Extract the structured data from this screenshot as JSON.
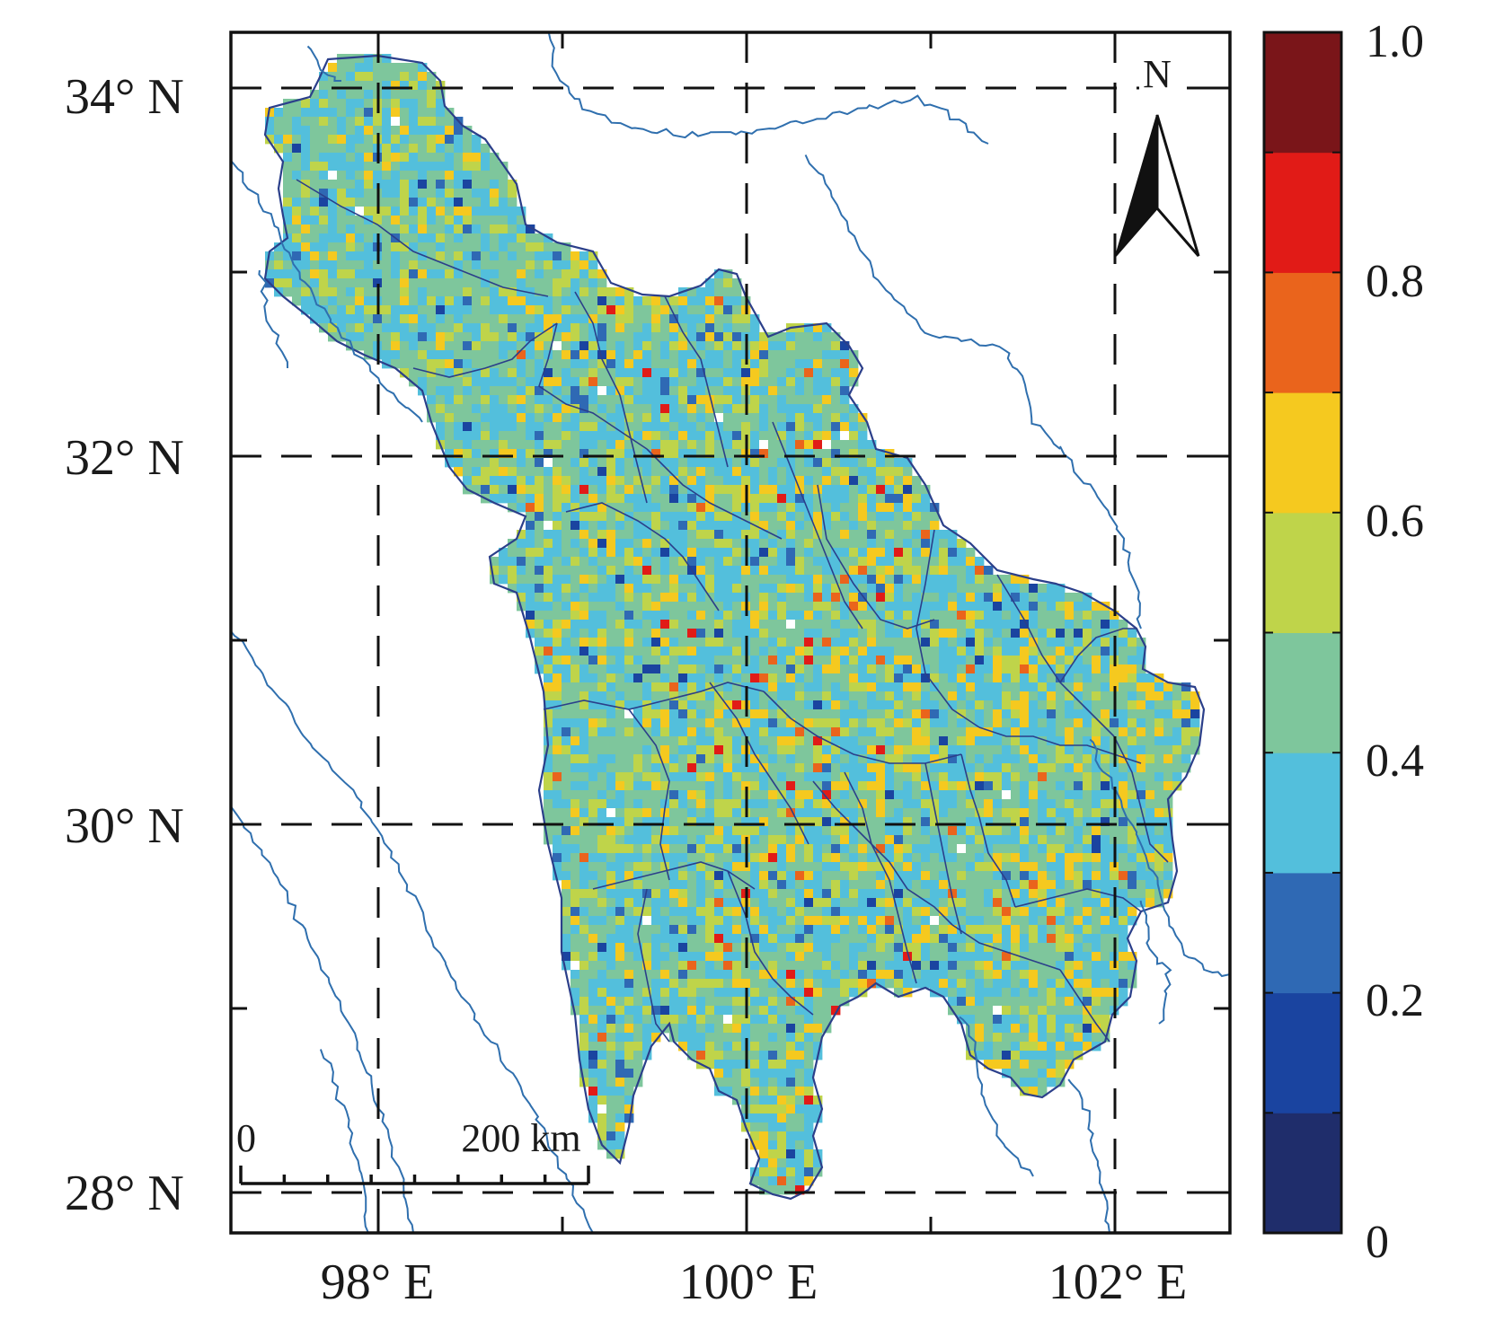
{
  "map": {
    "lat_labels": [
      "34° N",
      "32° N",
      "30° N",
      "28° N"
    ],
    "lon_labels": [
      "98° E",
      "100° E",
      "102° E"
    ],
    "lat_values": [
      34,
      32,
      30,
      28
    ],
    "lon_values": [
      98,
      100,
      102
    ],
    "extent": {
      "lon_min": 97.2,
      "lon_max": 102.6,
      "lat_min": 27.8,
      "lat_max": 34.3
    },
    "grid": "dashed",
    "north_arrow_label": "N",
    "scale_bar": {
      "start_label": "0",
      "end_label": "200 km"
    }
  },
  "colorbar": {
    "range": [
      0,
      1.0
    ],
    "tick_labels": [
      "0",
      "0.2",
      "0.4",
      "0.6",
      "0.8",
      "1.0"
    ],
    "tick_values": [
      0,
      0.2,
      0.4,
      0.6,
      0.8,
      1.0
    ],
    "colors": [
      "#1f2d6b",
      "#1a44a0",
      "#2f69b4",
      "#53bfdc",
      "#7ec69c",
      "#bfd44a",
      "#f5c91f",
      "#ea641c",
      "#e11b17",
      "#7a1519"
    ]
  }
}
